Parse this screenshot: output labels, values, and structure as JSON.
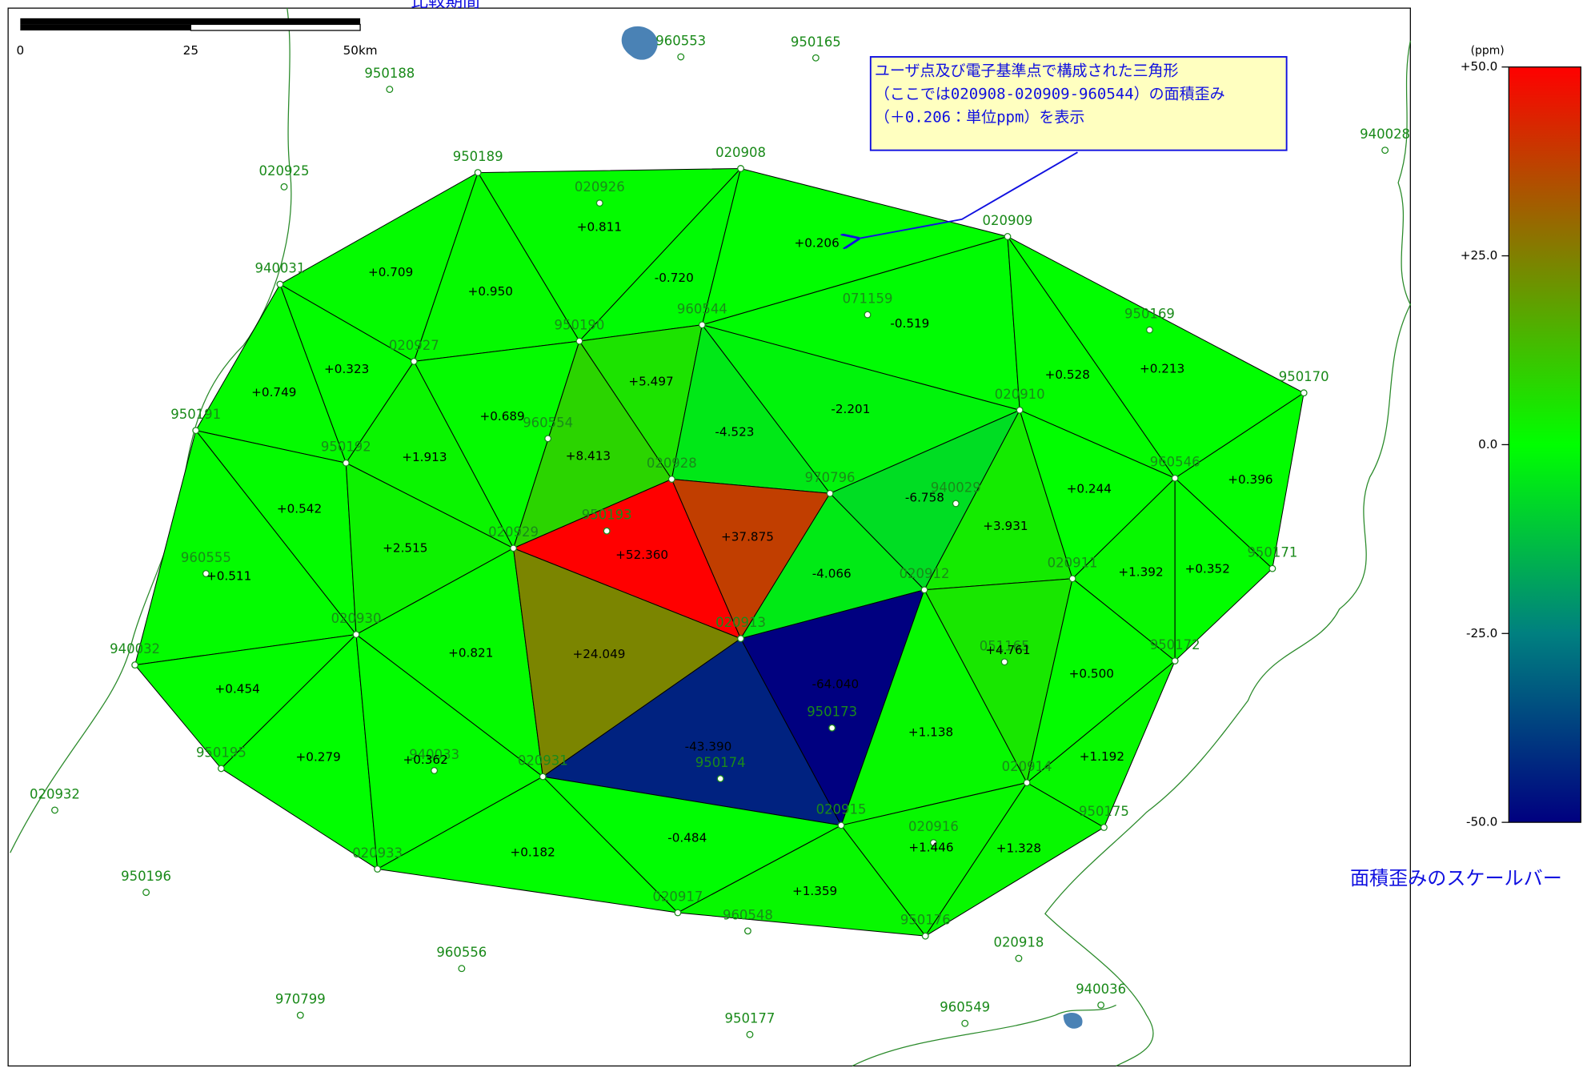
{
  "header": {
    "period_label": "比較期間"
  },
  "scale_bar": {
    "ticks": [
      "0",
      "25",
      "50km"
    ]
  },
  "stations": [
    "020908",
    "950189",
    "020909",
    "940031",
    "960544",
    "950190",
    "020927",
    "950170",
    "020910",
    "950191",
    "950192",
    "020928",
    "970796",
    "960546",
    "020929",
    "960554",
    "950193",
    "020912",
    "020911",
    "950171",
    "020913",
    "020930",
    "940032",
    "950172",
    "950195",
    "020931",
    "020914",
    "950175",
    "020915",
    "020933",
    "020917",
    "950176",
    "020926",
    "071159",
    "950169",
    "940029",
    "960555",
    "051165",
    "950173",
    "950174",
    "940033",
    "020916",
    "960548",
    "020932",
    "950196",
    "960556",
    "970799",
    "950177",
    "960549",
    "940036",
    "020918",
    "020925",
    "950188",
    "960553",
    "950165",
    "940028"
  ],
  "triangles": [
    {
      "value": 0.811,
      "label": "+0.811"
    },
    {
      "value": -0.72,
      "label": "-0.720"
    },
    {
      "value": 0.206,
      "label": "+0.206"
    },
    {
      "value": 0.709,
      "label": "+0.709"
    },
    {
      "value": 0.95,
      "label": "+0.950"
    },
    {
      "value": -0.519,
      "label": "-0.519"
    },
    {
      "value": 0.528,
      "label": "+0.528"
    },
    {
      "value": 0.213,
      "label": "+0.213"
    },
    {
      "value": 0.396,
      "label": "+0.396"
    },
    {
      "value": 0.323,
      "label": "+0.323"
    },
    {
      "value": 0.749,
      "label": "+0.749"
    },
    {
      "value": 0.689,
      "label": "+0.689"
    },
    {
      "value": 5.497,
      "label": "+5.497"
    },
    {
      "value": -4.523,
      "label": "-4.523"
    },
    {
      "value": -2.201,
      "label": "-2.201"
    },
    {
      "value": 8.413,
      "label": "+8.413"
    },
    {
      "value": 1.913,
      "label": "+1.913"
    },
    {
      "value": 0.542,
      "label": "+0.542"
    },
    {
      "value": -6.758,
      "label": "-6.758"
    },
    {
      "value": 3.931,
      "label": "+3.931"
    },
    {
      "value": 0.244,
      "label": "+0.244"
    },
    {
      "value": 2.515,
      "label": "+2.515"
    },
    {
      "value": 52.36,
      "label": "+52.360"
    },
    {
      "value": 37.875,
      "label": "+37.875"
    },
    {
      "value": -4.066,
      "label": "-4.066"
    },
    {
      "value": 1.392,
      "label": "+1.392"
    },
    {
      "value": 0.352,
      "label": "+0.352"
    },
    {
      "value": 0.511,
      "label": "+0.511"
    },
    {
      "value": 0.821,
      "label": "+0.821"
    },
    {
      "value": 24.049,
      "label": "+24.049"
    },
    {
      "value": -64.04,
      "label": "-64.040"
    },
    {
      "value": 4.761,
      "label": "+4.761"
    },
    {
      "value": 0.5,
      "label": "+0.500"
    },
    {
      "value": 0.454,
      "label": "+0.454"
    },
    {
      "value": -43.39,
      "label": "-43.390"
    },
    {
      "value": 1.138,
      "label": "+1.138"
    },
    {
      "value": 1.192,
      "label": "+1.192"
    },
    {
      "value": 0.279,
      "label": "+0.279"
    },
    {
      "value": 0.362,
      "label": "+0.362"
    },
    {
      "value": 0.182,
      "label": "+0.182"
    },
    {
      "value": -0.484,
      "label": "-0.484"
    },
    {
      "value": 1.446,
      "label": "+1.446"
    },
    {
      "value": 1.328,
      "label": "+1.328"
    },
    {
      "value": 1.359,
      "label": "+1.359"
    }
  ],
  "annotation": {
    "lines": [
      "ユーザ点及び電子基準点で構成された三角形",
      "（ここでは020908-020909-960544）の面積歪み",
      "（＋0.206：単位ppm）を表示"
    ]
  },
  "colorbar": {
    "unit": "(ppm)",
    "range": [
      -50,
      50
    ],
    "ticks": [
      {
        "value": 50,
        "label": "+50.0"
      },
      {
        "value": 25,
        "label": "+25.0"
      },
      {
        "value": 0,
        "label": "0.0"
      },
      {
        "value": -25,
        "label": "-25.0"
      },
      {
        "value": -50,
        "label": "-50.0"
      }
    ],
    "caption": "面積歪みのスケールバー"
  }
}
